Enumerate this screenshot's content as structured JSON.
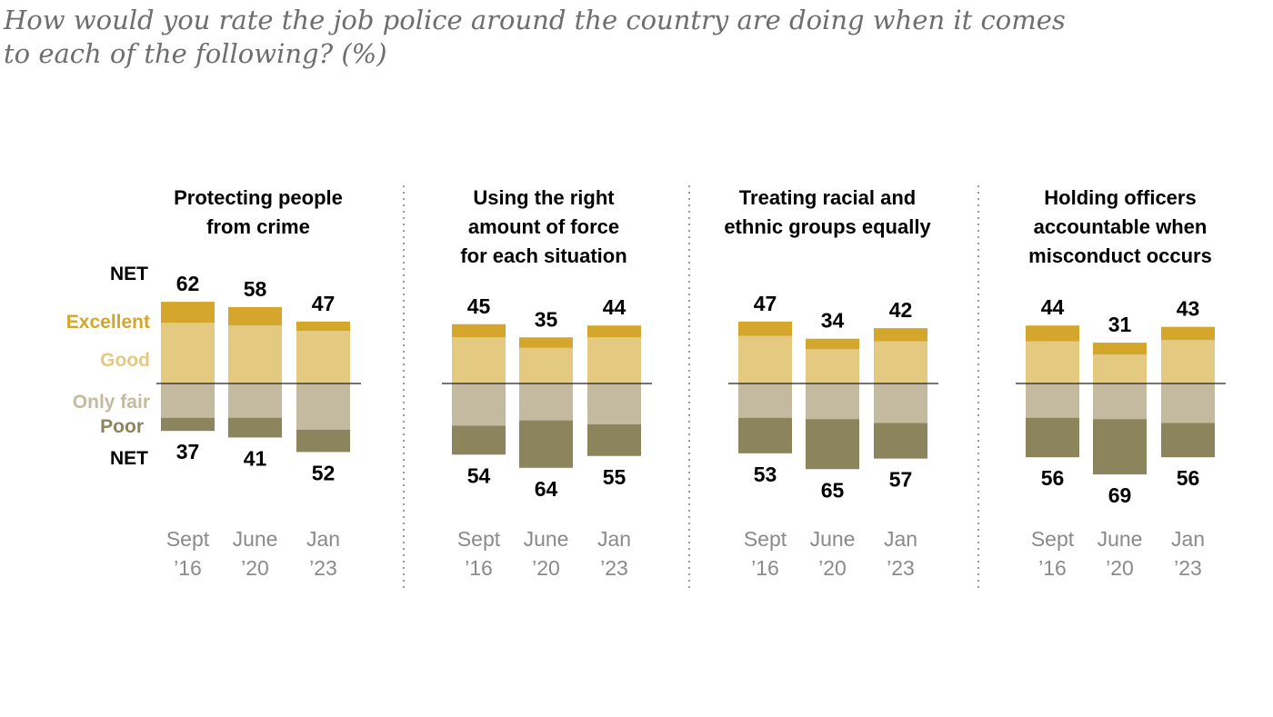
{
  "title_line1": "How would you rate the job police around the country are doing when it comes",
  "title_line2": "to each of the following? (%)",
  "colors": {
    "excellent": "#d4a72c",
    "good": "#e3ca80",
    "only_fair": "#c4baa0",
    "poor": "#8c845c",
    "excellent_text": "#d4a72c",
    "good_text": "#e3ca80",
    "only_fair_text": "#c4baa0",
    "poor_text": "#8c845c"
  },
  "legend": {
    "net_top": "NET",
    "excellent": "Excellent",
    "good": "Good",
    "only_fair": "Only fair",
    "poor": "Poor",
    "net_bottom": "NET"
  },
  "chart_data": {
    "type": "bar",
    "stacked": "diverging",
    "categories": [
      {
        "line1": "Sept",
        "line2": "’16"
      },
      {
        "line1": "June",
        "line2": "’20"
      },
      {
        "line1": "Jan",
        "line2": "’23"
      }
    ],
    "panels": [
      {
        "title_lines": [
          "Protecting people",
          "from crime"
        ],
        "positive_net": [
          62,
          58,
          47
        ],
        "negative_net": [
          37,
          41,
          52
        ],
        "excellent": [
          16,
          14,
          7
        ],
        "good": [
          46,
          44,
          40
        ],
        "only_fair": [
          26,
          26,
          35
        ],
        "poor": [
          10,
          15,
          17
        ]
      },
      {
        "title_lines": [
          "Using the right",
          "amount of force",
          "for each situation"
        ],
        "positive_net": [
          45,
          35,
          44
        ],
        "negative_net": [
          54,
          64,
          55
        ],
        "excellent": [
          10,
          8,
          9
        ],
        "good": [
          35,
          27,
          35
        ],
        "only_fair": [
          32,
          28,
          31
        ],
        "poor": [
          22,
          36,
          24
        ]
      },
      {
        "title_lines": [
          "Treating racial and",
          "ethnic groups equally"
        ],
        "positive_net": [
          47,
          34,
          42
        ],
        "negative_net": [
          53,
          65,
          57
        ],
        "excellent": [
          11,
          8,
          10
        ],
        "good": [
          36,
          26,
          32
        ],
        "only_fair": [
          26,
          27,
          30
        ],
        "poor": [
          27,
          38,
          27
        ]
      },
      {
        "title_lines": [
          "Holding officers",
          "accountable when",
          "misconduct occurs"
        ],
        "positive_net": [
          44,
          31,
          43
        ],
        "negative_net": [
          56,
          69,
          56
        ],
        "excellent": [
          12,
          9,
          10
        ],
        "good": [
          32,
          22,
          33
        ],
        "only_fair": [
          26,
          27,
          30
        ],
        "poor": [
          30,
          42,
          26
        ]
      }
    ]
  }
}
